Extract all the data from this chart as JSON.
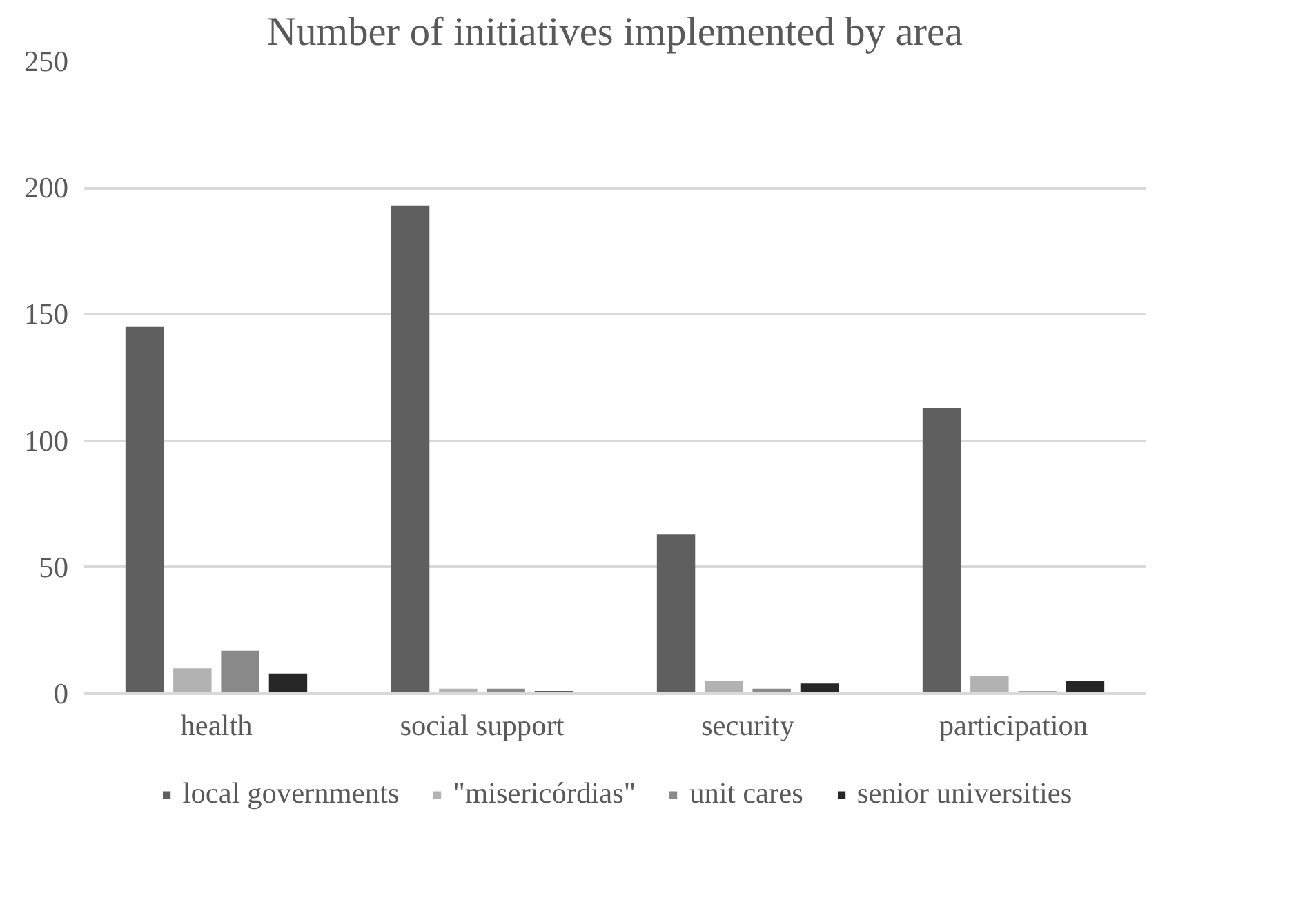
{
  "chart_data": {
    "type": "bar",
    "title": "Number of initiatives implemented by area",
    "categories": [
      "health",
      "social support",
      "security",
      "participation"
    ],
    "series": [
      {
        "name": "local governments",
        "color": "#5f5f5f",
        "values": [
          145,
          193,
          63,
          113
        ]
      },
      {
        "name": "\"misericórdias\"",
        "color": "#b2b2b2",
        "values": [
          10,
          2,
          5,
          7
        ]
      },
      {
        "name": "unit cares",
        "color": "#898989",
        "values": [
          17,
          2,
          2,
          1
        ]
      },
      {
        "name": "senior universities",
        "color": "#262626",
        "values": [
          8,
          1,
          4,
          5
        ]
      }
    ],
    "ylim": [
      0,
      250
    ],
    "yticks": [
      0,
      50,
      100,
      150,
      200,
      250
    ],
    "grid": "y",
    "legend": "bottom"
  }
}
